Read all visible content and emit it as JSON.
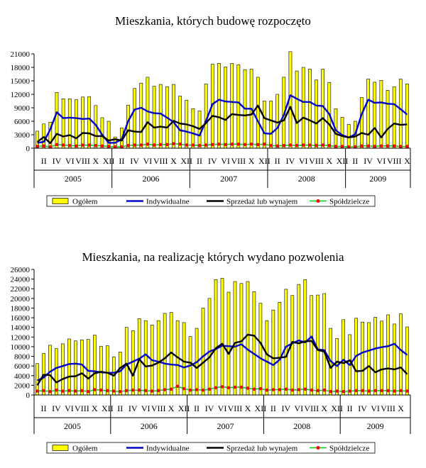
{
  "chart_data": [
    {
      "type": "bar",
      "title": "Mieszkania, których budowę rozpoczęto",
      "xlabel": "",
      "ylabel": "",
      "ylim": [
        0,
        21000
      ],
      "yticks": [
        "21000",
        "18000",
        "15000",
        "12000",
        "9000",
        "6000",
        "3000",
        "0"
      ],
      "years": [
        "2005",
        "2006",
        "2007",
        "2008",
        "2009"
      ],
      "month_labels": [
        "II",
        "IV",
        "VI",
        "VIII",
        "X",
        "XII"
      ],
      "legend_position": "bottom",
      "series": [
        {
          "name": "Ogółem",
          "kind": "bar",
          "color": "#ffff00",
          "values": [
            3800,
            5400,
            5800,
            12400,
            11000,
            11000,
            10800,
            11400,
            11500,
            9500,
            6800,
            6000,
            2500,
            4500,
            9600,
            13300,
            14500,
            15800,
            13800,
            14200,
            13700,
            14200,
            11600,
            10700,
            8800,
            8300,
            14300,
            18700,
            18900,
            18100,
            18900,
            18600,
            17500,
            17600,
            15800,
            10500,
            10500,
            12000,
            15800,
            21500,
            17200,
            18000,
            17600,
            15200,
            17600,
            14600,
            8800,
            6900,
            5300,
            6000,
            11300,
            15400,
            14700,
            15100,
            12900,
            13700,
            15400,
            14300
          ]
        },
        {
          "name": "Indywidualne",
          "kind": "line",
          "color": "#0000cc",
          "values": [
            1200,
            1400,
            4200,
            8000,
            6700,
            6800,
            6700,
            6500,
            6600,
            5200,
            3000,
            1200,
            1200,
            2000,
            6000,
            8600,
            9000,
            8200,
            7800,
            7700,
            6800,
            5800,
            4000,
            3700,
            3300,
            2800,
            6100,
            9800,
            10800,
            10400,
            10300,
            10200,
            8800,
            8800,
            6000,
            3300,
            3200,
            4500,
            7400,
            11800,
            11000,
            10300,
            10300,
            9500,
            9400,
            7600,
            4000,
            2900,
            2400,
            3100,
            7600,
            10800,
            10100,
            10200,
            9900,
            9800,
            8700,
            7500
          ]
        },
        {
          "name": "Sprzedaż lub wynajem",
          "kind": "line",
          "color": "#000000",
          "values": [
            1400,
            2500,
            1100,
            3200,
            2600,
            2900,
            2200,
            3400,
            3300,
            2700,
            2700,
            1700,
            2000,
            1700,
            4000,
            3700,
            3600,
            5800,
            4600,
            4800,
            4600,
            6100,
            5500,
            5300,
            4900,
            4300,
            5600,
            7200,
            6900,
            6300,
            7600,
            7400,
            7300,
            7500,
            9500,
            6700,
            6200,
            5700,
            6200,
            9200,
            5600,
            6800,
            6200,
            5500,
            6700,
            5300,
            3200,
            2700,
            2400,
            2600,
            3400,
            3000,
            4500,
            2400,
            4300,
            5500,
            5200,
            5300
          ]
        },
        {
          "name": "Spółdzielcze",
          "kind": "line-marker",
          "color": "#00cc00",
          "marker_color": "#ff0000",
          "values": [
            400,
            500,
            300,
            800,
            700,
            600,
            500,
            700,
            700,
            600,
            500,
            400,
            300,
            300,
            600,
            700,
            700,
            900,
            700,
            800,
            800,
            1000,
            900,
            700,
            700,
            600,
            700,
            800,
            900,
            800,
            900,
            900,
            800,
            900,
            800,
            900,
            600,
            500,
            600,
            700,
            600,
            700,
            700,
            600,
            700,
            600,
            400,
            400,
            300,
            300,
            500,
            500,
            400,
            500,
            500,
            500,
            400,
            400
          ]
        }
      ]
    },
    {
      "type": "bar",
      "title": "Mieszkania, na realizację których wydano pozwolenia",
      "xlabel": "",
      "ylabel": "",
      "ylim": [
        0,
        26000
      ],
      "yticks": [
        "26000",
        "24000",
        "22000",
        "20000",
        "18000",
        "16000",
        "14000",
        "12000",
        "10000",
        "8000",
        "6000",
        "4000",
        "2000",
        "0"
      ],
      "years": [
        "2005",
        "2006",
        "2007",
        "2008",
        "2009"
      ],
      "month_labels": [
        "II",
        "IV",
        "VI",
        "VIII",
        "X",
        "XII"
      ],
      "legend_position": "bottom",
      "series": [
        {
          "name": "Ogółem",
          "kind": "bar",
          "color": "#ffff00",
          "values": [
            6500,
            8600,
            10300,
            9600,
            10600,
            11600,
            11200,
            11400,
            11500,
            12400,
            10100,
            10200,
            7900,
            8900,
            14000,
            13300,
            15800,
            15400,
            14500,
            15400,
            16900,
            17100,
            15400,
            15000,
            12100,
            13800,
            18000,
            20000,
            23900,
            24200,
            21300,
            23500,
            23100,
            23500,
            21400,
            19000,
            15400,
            17600,
            19200,
            21900,
            20600,
            22900,
            23900,
            20600,
            20700,
            21000,
            13800,
            11700,
            15600,
            12500,
            15900,
            15100,
            15000,
            16100,
            15300,
            16600,
            14700,
            16800,
            14100
          ]
        },
        {
          "name": "Indywidualne",
          "kind": "line",
          "color": "#0000cc",
          "values": [
            3000,
            3600,
            4800,
            5600,
            6000,
            6400,
            6500,
            6300,
            5000,
            4900,
            4700,
            4600,
            4600,
            4900,
            6300,
            6900,
            7500,
            8400,
            7200,
            6900,
            6500,
            6300,
            6200,
            5700,
            6100,
            6800,
            8000,
            9000,
            9500,
            10200,
            10100,
            10000,
            10500,
            9400,
            8500,
            7600,
            6900,
            6200,
            7300,
            10000,
            10700,
            11300,
            10900,
            12100,
            9400,
            9300,
            7000,
            6000,
            7300,
            6200,
            8100,
            8800,
            9200,
            9600,
            9900,
            10100,
            10600,
            9300,
            8300
          ]
        },
        {
          "name": "Sprzedaż lub wynajem",
          "kind": "line",
          "color": "#000000",
          "values": [
            2000,
            4200,
            4100,
            2600,
            3300,
            3800,
            3900,
            4500,
            3400,
            4500,
            4800,
            4600,
            4000,
            5600,
            6500,
            4000,
            7400,
            5900,
            6100,
            6700,
            7600,
            8800,
            7800,
            6900,
            6700,
            5600,
            6700,
            7800,
            9700,
            10600,
            8500,
            10800,
            11100,
            12500,
            12300,
            10800,
            8400,
            7600,
            7700,
            7900,
            11000,
            10700,
            11100,
            11200,
            9300,
            9000,
            5600,
            6900,
            6600,
            7200,
            4900,
            5000,
            6000,
            4700,
            5300,
            5500,
            5300,
            5700,
            4300
          ]
        },
        {
          "name": "Spółdzielcze",
          "kind": "line-marker",
          "color": "#00cc00",
          "marker_color": "#ff0000",
          "values": [
            800,
            900,
            700,
            1000,
            800,
            900,
            800,
            900,
            700,
            1100,
            1000,
            900,
            800,
            700,
            900,
            1000,
            1000,
            900,
            800,
            900,
            1100,
            1200,
            1800,
            1300,
            1000,
            1100,
            1000,
            1200,
            1500,
            1700,
            1500,
            1600,
            1600,
            1400,
            1200,
            1300,
            1000,
            1100,
            1100,
            1200,
            1000,
            1100,
            1200,
            1000,
            900,
            1000,
            700,
            800,
            700,
            800,
            900,
            900,
            800,
            900,
            900,
            900,
            800,
            900,
            800
          ]
        }
      ]
    }
  ]
}
